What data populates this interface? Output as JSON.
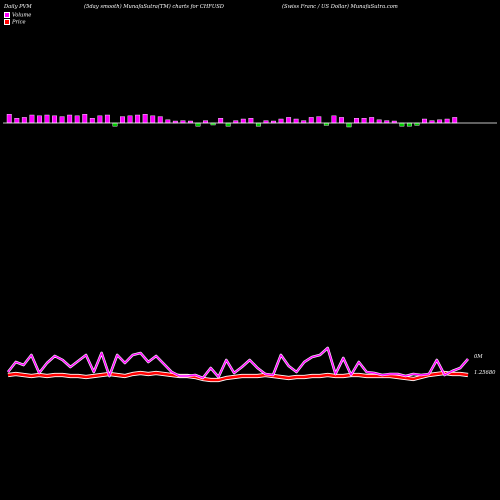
{
  "header": {
    "left": "Daily PVM",
    "middle": "(5day smooth) MunafaSutra(TM) charts for CHFUSD",
    "right": "(Swiss Franc / US Dollar) MunafaSutra.com"
  },
  "legend": {
    "volume_label": "Volume",
    "price_label": "Price",
    "volume_color": "#ff00ff",
    "price_color": "#ff0000"
  },
  "chart_data": {
    "type": "bar",
    "colors": {
      "volume_up": "#ff00ff",
      "volume_down": "#00cc00",
      "price": "#ff0000",
      "volume_line": "#ff00ff",
      "outline": "#ffffff",
      "axis": "#ffffff"
    },
    "volume_axis_label": "0M",
    "price_axis_label": "1.25680",
    "volume_bars": [
      {
        "v": 0.55,
        "d": "up"
      },
      {
        "v": 0.3,
        "d": "up"
      },
      {
        "v": 0.35,
        "d": "up"
      },
      {
        "v": 0.5,
        "d": "up"
      },
      {
        "v": 0.45,
        "d": "up"
      },
      {
        "v": 0.5,
        "d": "up"
      },
      {
        "v": 0.45,
        "d": "up"
      },
      {
        "v": 0.4,
        "d": "up"
      },
      {
        "v": 0.5,
        "d": "up"
      },
      {
        "v": 0.45,
        "d": "up"
      },
      {
        "v": 0.55,
        "d": "up"
      },
      {
        "v": 0.3,
        "d": "up"
      },
      {
        "v": 0.45,
        "d": "up"
      },
      {
        "v": 0.5,
        "d": "up"
      },
      {
        "v": 0.2,
        "d": "down"
      },
      {
        "v": 0.4,
        "d": "up"
      },
      {
        "v": 0.45,
        "d": "up"
      },
      {
        "v": 0.5,
        "d": "up"
      },
      {
        "v": 0.55,
        "d": "up"
      },
      {
        "v": 0.45,
        "d": "up"
      },
      {
        "v": 0.4,
        "d": "up"
      },
      {
        "v": 0.2,
        "d": "up"
      },
      {
        "v": 0.1,
        "d": "up"
      },
      {
        "v": 0.15,
        "d": "up"
      },
      {
        "v": 0.1,
        "d": "up"
      },
      {
        "v": 0.2,
        "d": "down"
      },
      {
        "v": 0.15,
        "d": "up"
      },
      {
        "v": 0.1,
        "d": "down"
      },
      {
        "v": 0.3,
        "d": "up"
      },
      {
        "v": 0.2,
        "d": "down"
      },
      {
        "v": 0.15,
        "d": "up"
      },
      {
        "v": 0.25,
        "d": "up"
      },
      {
        "v": 0.3,
        "d": "up"
      },
      {
        "v": 0.2,
        "d": "down"
      },
      {
        "v": 0.15,
        "d": "up"
      },
      {
        "v": 0.1,
        "d": "up"
      },
      {
        "v": 0.25,
        "d": "up"
      },
      {
        "v": 0.35,
        "d": "up"
      },
      {
        "v": 0.25,
        "d": "up"
      },
      {
        "v": 0.15,
        "d": "up"
      },
      {
        "v": 0.35,
        "d": "up"
      },
      {
        "v": 0.4,
        "d": "up"
      },
      {
        "v": 0.15,
        "d": "down"
      },
      {
        "v": 0.45,
        "d": "up"
      },
      {
        "v": 0.35,
        "d": "up"
      },
      {
        "v": 0.25,
        "d": "down"
      },
      {
        "v": 0.3,
        "d": "up"
      },
      {
        "v": 0.3,
        "d": "up"
      },
      {
        "v": 0.35,
        "d": "up"
      },
      {
        "v": 0.2,
        "d": "up"
      },
      {
        "v": 0.15,
        "d": "up"
      },
      {
        "v": 0.1,
        "d": "up"
      },
      {
        "v": 0.2,
        "d": "down"
      },
      {
        "v": 0.2,
        "d": "down"
      },
      {
        "v": 0.15,
        "d": "down"
      },
      {
        "v": 0.25,
        "d": "up"
      },
      {
        "v": 0.15,
        "d": "up"
      },
      {
        "v": 0.2,
        "d": "up"
      },
      {
        "v": 0.25,
        "d": "up"
      },
      {
        "v": 0.35,
        "d": "up"
      }
    ],
    "volume_line": [
      372,
      362,
      365,
      355,
      373,
      363,
      356,
      360,
      367,
      361,
      355,
      372,
      353,
      376,
      355,
      363,
      355,
      353,
      362,
      356,
      364,
      372,
      376,
      376,
      375,
      378,
      368,
      377,
      360,
      373,
      367,
      360,
      368,
      374,
      375,
      355,
      366,
      372,
      362,
      357,
      355,
      348,
      374,
      358,
      375,
      362,
      372,
      373,
      375,
      374,
      374,
      376,
      374,
      375,
      374,
      360,
      375,
      371,
      368,
      359
    ],
    "price_line": [
      375,
      374,
      375,
      376,
      375,
      376,
      375,
      375,
      376,
      376,
      377,
      376,
      375,
      374,
      375,
      376,
      374,
      373,
      374,
      373,
      374,
      375,
      376,
      376,
      377,
      379,
      380,
      380,
      378,
      377,
      376,
      376,
      376,
      375,
      376,
      377,
      378,
      377,
      377,
      376,
      376,
      375,
      376,
      376,
      375,
      375,
      376,
      376,
      376,
      376,
      377,
      378,
      379,
      377,
      375,
      374,
      373,
      374,
      374,
      375
    ]
  }
}
